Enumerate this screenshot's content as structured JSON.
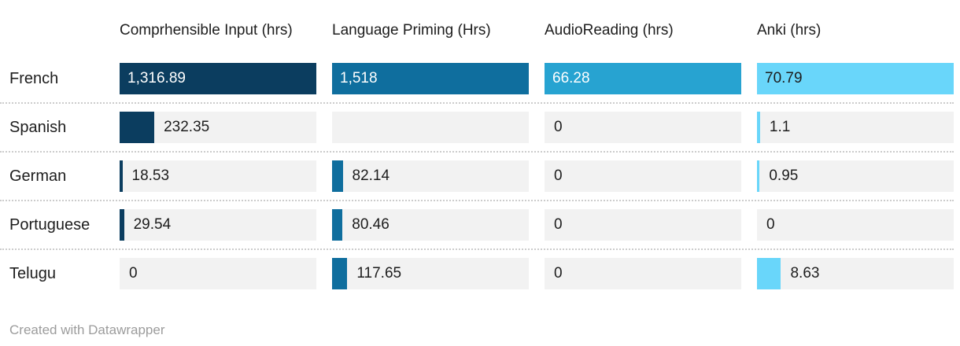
{
  "chart_data": {
    "type": "bar",
    "variant": "split-bars-table",
    "legend_position": "column-headers",
    "bar_scale": "independent-per-column",
    "columns": [
      {
        "label": "Comprhensible Input (hrs)",
        "color": "#0b3d5f",
        "max": 1316.89,
        "inside_label_color": "#ffffff"
      },
      {
        "label": "Language Priming (Hrs)",
        "color": "#0f6e9e",
        "max": 1518,
        "inside_label_color": "#ffffff"
      },
      {
        "label": "AudioReading (hrs)",
        "color": "#27a3d1",
        "max": 66.28,
        "inside_label_color": "#ffffff"
      },
      {
        "label": "Anki (hrs)",
        "color": "#69d6fa",
        "max": 70.79,
        "inside_label_color": "#1d1d1d"
      }
    ],
    "rows": [
      {
        "label": "French",
        "values": [
          1316.89,
          1518,
          66.28,
          70.79
        ],
        "display": [
          "1,316.89",
          "1,518",
          "66.28",
          "70.79"
        ]
      },
      {
        "label": "Spanish",
        "values": [
          232.35,
          null,
          0,
          1.1
        ],
        "display": [
          "232.35",
          null,
          "0",
          "1.1"
        ]
      },
      {
        "label": "German",
        "values": [
          18.53,
          82.14,
          0,
          0.95
        ],
        "display": [
          "18.53",
          "82.14",
          "0",
          "0.95"
        ]
      },
      {
        "label": "Portuguese",
        "values": [
          29.54,
          80.46,
          0,
          0
        ],
        "display": [
          "29.54",
          "80.46",
          "0",
          "0"
        ]
      },
      {
        "label": "Telugu",
        "values": [
          0,
          117.65,
          0,
          8.63
        ],
        "display": [
          "0",
          "117.65",
          "0",
          "8.63"
        ]
      }
    ]
  },
  "colors": {
    "track": "#f2f2f2",
    "separator": "#cccccc",
    "text": "#1d1d1d",
    "footer_text": "#9c9c9c"
  },
  "footer": {
    "credit": "Created with Datawrapper"
  }
}
